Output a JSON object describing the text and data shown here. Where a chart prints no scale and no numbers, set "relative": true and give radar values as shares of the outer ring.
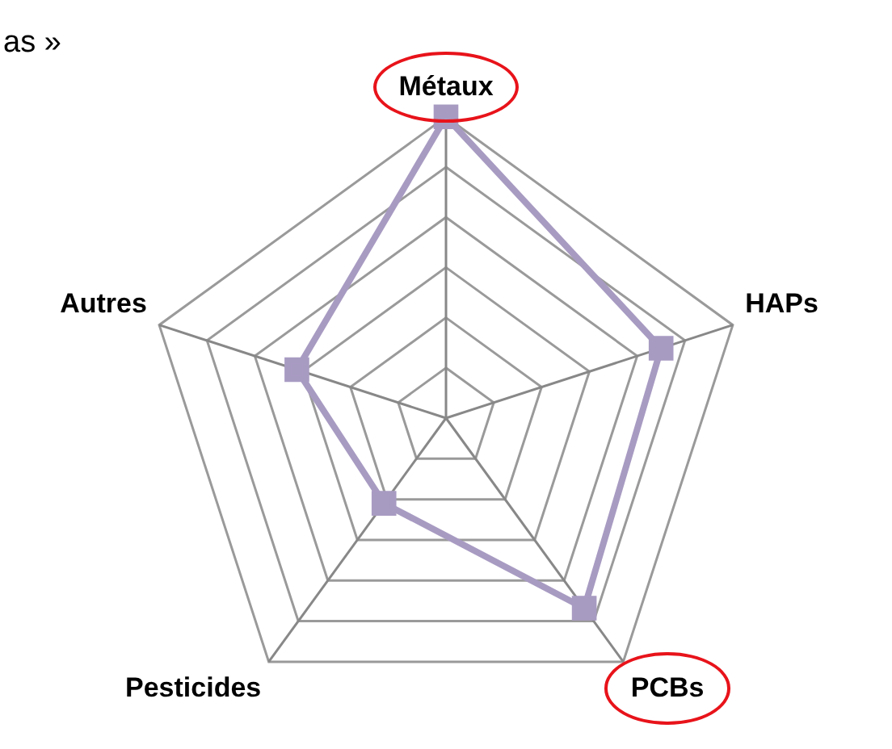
{
  "chart_data": {
    "type": "radar",
    "relative": true,
    "categories": [
      "Métaux",
      "HAPs",
      "PCBs",
      "Pesticides",
      "Autres"
    ],
    "series": [
      {
        "color": "#a89bc2",
        "values": [
          1.0,
          0.75,
          0.78,
          0.35,
          0.52
        ]
      }
    ],
    "marker": "square",
    "grid": true,
    "legend": false,
    "annotations": [
      "as »"
    ]
  }
}
